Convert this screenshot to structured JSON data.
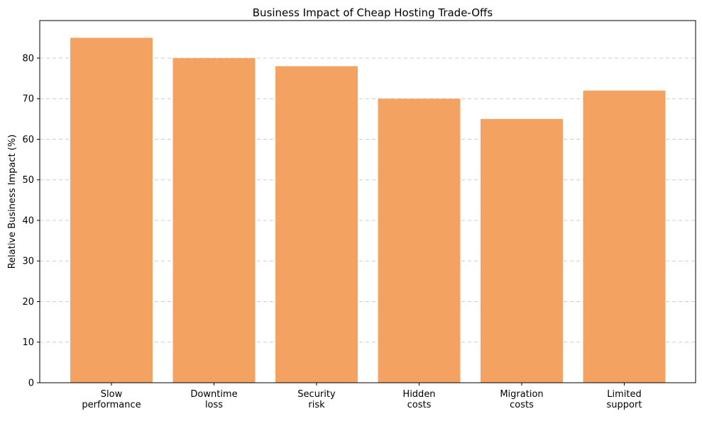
{
  "chart_data": {
    "type": "bar",
    "title": "Business Impact of Cheap Hosting Trade-Offs",
    "xlabel": "",
    "ylabel": "Relative Business Impact (%)",
    "categories": [
      [
        "Slow",
        "performance"
      ],
      [
        "Downtime",
        "loss"
      ],
      [
        "Security",
        "risk"
      ],
      [
        "Hidden",
        "costs"
      ],
      [
        "Migration",
        "costs"
      ],
      [
        "Limited",
        "support"
      ]
    ],
    "values": [
      85,
      80,
      78,
      70,
      65,
      72
    ],
    "ylim": [
      0,
      89.25
    ],
    "yticks": [
      0,
      10,
      20,
      30,
      40,
      50,
      60,
      70,
      80
    ],
    "grid": "y-dashed",
    "legend": "none",
    "colors": {
      "bar": "#f4a261",
      "grid": "#cccccc",
      "axis": "#000000"
    }
  }
}
